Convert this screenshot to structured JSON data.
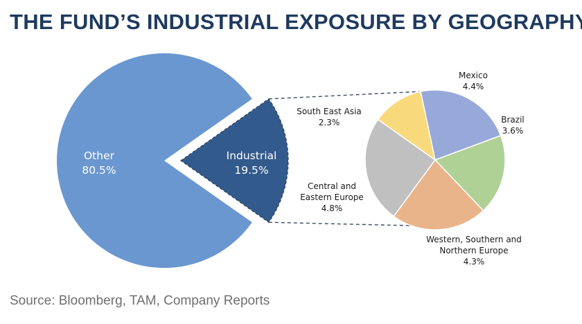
{
  "title": "THE FUND’S INDUSTRIAL EXPOSURE BY GEOGRAPHY",
  "source": "Source: Bloomberg, TAM, Company Reports",
  "chart_data": [
    {
      "type": "pie",
      "slices": [
        {
          "label": "Other",
          "value": 80.5,
          "value_label": "80.5%",
          "color": "#6a97d0"
        },
        {
          "label": "Industrial",
          "value": 19.5,
          "value_label": "19.5%",
          "color": "#335a8c",
          "exploded": true
        }
      ]
    },
    {
      "type": "pie",
      "slices": [
        {
          "label": "Mexico",
          "value": 4.4,
          "value_label": "4.4%",
          "color": "#97a9d8"
        },
        {
          "label": "Brazil",
          "value": 3.6,
          "value_label": "3.6%",
          "color": "#afd196"
        },
        {
          "label": "Western, Southern and Northern Europe",
          "value": 4.3,
          "value_label": "4.3%",
          "color": "#eab48a"
        },
        {
          "label": "Central and Eastern Europe",
          "value": 4.8,
          "value_label": "4.8%",
          "color": "#c0c0c0"
        },
        {
          "label": "South East Asia",
          "value": 2.3,
          "value_label": "2.3%",
          "color": "#f8d97c"
        }
      ]
    }
  ]
}
